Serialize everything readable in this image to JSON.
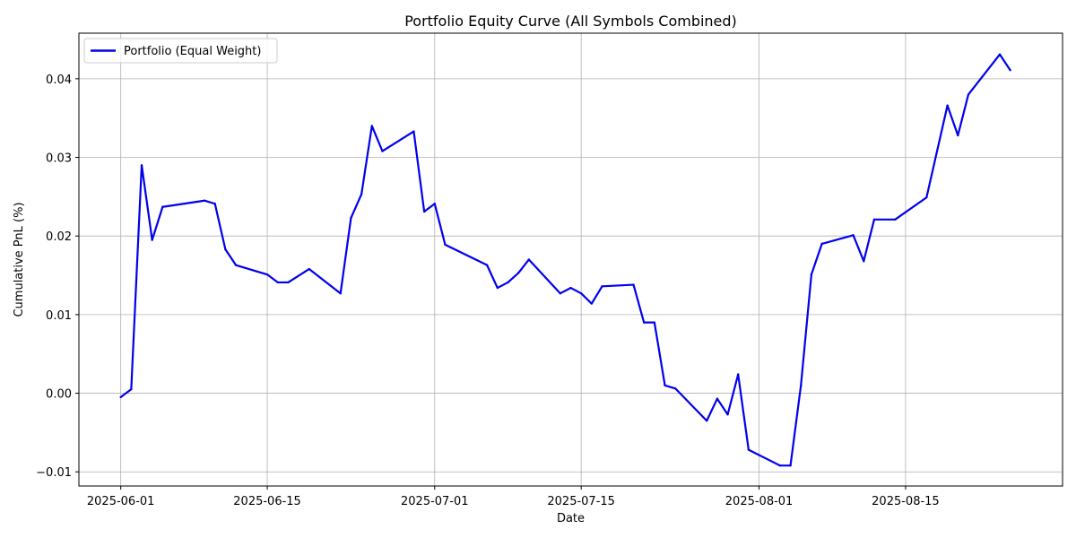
{
  "chart_data": {
    "type": "line",
    "title": "Portfolio Equity Curve (All Symbols Combined)",
    "xlabel": "Date",
    "ylabel": "Cumulative PnL (%)",
    "grid": true,
    "legend_position": "top-left",
    "xlim": [
      "2025-05-28",
      "2025-08-30"
    ],
    "ylim": [
      -0.0118,
      0.0458
    ],
    "x_ticks": [
      "2025-06-01",
      "2025-06-15",
      "2025-07-01",
      "2025-07-15",
      "2025-08-01",
      "2025-08-15"
    ],
    "y_ticks": [
      -0.01,
      0.0,
      0.01,
      0.02,
      0.03,
      0.04
    ],
    "y_tick_labels": [
      "−0.01",
      "0.00",
      "0.01",
      "0.02",
      "0.03",
      "0.04"
    ],
    "series": [
      {
        "name": "Portfolio (Equal Weight)",
        "color": "#0000ee",
        "x": [
          "2025-06-01",
          "2025-06-02",
          "2025-06-03",
          "2025-06-04",
          "2025-06-05",
          "2025-06-09",
          "2025-06-10",
          "2025-06-11",
          "2025-06-12",
          "2025-06-15",
          "2025-06-16",
          "2025-06-17",
          "2025-06-19",
          "2025-06-22",
          "2025-06-23",
          "2025-06-24",
          "2025-06-25",
          "2025-06-26",
          "2025-06-29",
          "2025-06-30",
          "2025-07-01",
          "2025-07-02",
          "2025-07-06",
          "2025-07-07",
          "2025-07-08",
          "2025-07-09",
          "2025-07-10",
          "2025-07-13",
          "2025-07-14",
          "2025-07-15",
          "2025-07-16",
          "2025-07-17",
          "2025-07-20",
          "2025-07-21",
          "2025-07-22",
          "2025-07-23",
          "2025-07-24",
          "2025-07-27",
          "2025-07-28",
          "2025-07-29",
          "2025-07-30",
          "2025-07-31",
          "2025-08-03",
          "2025-08-04",
          "2025-08-05",
          "2025-08-06",
          "2025-08-07",
          "2025-08-10",
          "2025-08-11",
          "2025-08-12",
          "2025-08-14",
          "2025-08-17",
          "2025-08-19",
          "2025-08-20",
          "2025-08-21",
          "2025-08-24",
          "2025-08-25"
        ],
        "y": [
          -0.0005,
          0.0005,
          0.029,
          0.0195,
          0.0237,
          0.0245,
          0.0241,
          0.0183,
          0.0163,
          0.0151,
          0.0141,
          0.0141,
          0.0158,
          0.0127,
          0.0223,
          0.0253,
          0.034,
          0.0308,
          0.0333,
          0.0231,
          0.0241,
          0.0189,
          0.0163,
          0.0134,
          0.0141,
          0.0153,
          0.017,
          0.0127,
          0.0134,
          0.0127,
          0.0114,
          0.0136,
          0.0138,
          0.009,
          0.009,
          0.001,
          0.0006,
          -0.0035,
          -0.0007,
          -0.0027,
          0.0024,
          -0.0072,
          -0.0092,
          -0.0092,
          0.001,
          0.0151,
          0.019,
          0.0201,
          0.0168,
          0.0221,
          0.0221,
          0.0249,
          0.0366,
          0.0328,
          0.038,
          0.0431,
          0.0411
        ]
      }
    ]
  }
}
